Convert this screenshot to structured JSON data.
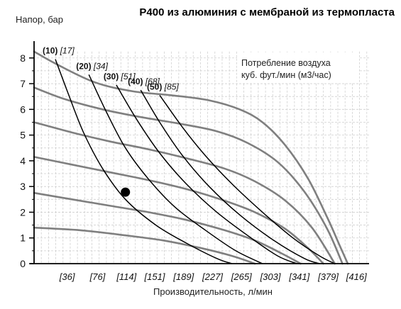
{
  "chart_data": {
    "type": "line",
    "title": "P400 из алюминия с мембраной из термопласта",
    "ylabel": "Напор, бар",
    "xlabel": "Производительность, л/мин",
    "ylim": [
      0,
      8.6
    ],
    "xlim": [
      0,
      440
    ],
    "y_ticks": [
      "0",
      "1",
      "2",
      "3",
      "4",
      "5",
      "6",
      "7",
      "8"
    ],
    "x_ticks": [
      {
        "value": 36,
        "label": "[36]"
      },
      {
        "value": 76,
        "label": "[76]"
      },
      {
        "value": 114,
        "label": "[114]"
      },
      {
        "value": 151,
        "label": "[151]"
      },
      {
        "value": 189,
        "label": "[189]"
      },
      {
        "value": 227,
        "label": "[227]"
      },
      {
        "value": 265,
        "label": "[265]"
      },
      {
        "value": 303,
        "label": "[303]"
      },
      {
        "value": 341,
        "label": "[341]"
      },
      {
        "value": 379,
        "label": "[379]"
      },
      {
        "value": 416,
        "label": "[416]"
      }
    ],
    "grid": true,
    "legend": {
      "position": "top-right",
      "lines": [
        "Потребление воздуха",
        "куб. фут./мин (м3/час)"
      ]
    },
    "pressure_series": [
      {
        "values": [
          [
            0,
            8.25
          ],
          [
            30,
            7.75
          ],
          [
            80,
            7.05
          ],
          [
            130,
            6.7
          ],
          [
            180,
            6.55
          ],
          [
            230,
            6.35
          ],
          [
            270,
            6.0
          ],
          [
            300,
            5.5
          ],
          [
            330,
            4.6
          ],
          [
            360,
            3.3
          ],
          [
            385,
            1.8
          ],
          [
            400,
            0.8
          ],
          [
            412,
            0.0
          ]
        ]
      },
      {
        "values": [
          [
            0,
            6.85
          ],
          [
            40,
            6.4
          ],
          [
            90,
            6.0
          ],
          [
            140,
            5.7
          ],
          [
            190,
            5.45
          ],
          [
            240,
            5.15
          ],
          [
            280,
            4.7
          ],
          [
            320,
            3.95
          ],
          [
            355,
            2.8
          ],
          [
            385,
            1.35
          ],
          [
            405,
            0.0
          ]
        ]
      },
      {
        "values": [
          [
            0,
            5.5
          ],
          [
            50,
            5.1
          ],
          [
            100,
            4.75
          ],
          [
            150,
            4.45
          ],
          [
            200,
            4.1
          ],
          [
            250,
            3.7
          ],
          [
            290,
            3.2
          ],
          [
            330,
            2.45
          ],
          [
            365,
            1.4
          ],
          [
            395,
            0.0
          ]
        ]
      },
      {
        "values": [
          [
            0,
            4.15
          ],
          [
            50,
            3.85
          ],
          [
            100,
            3.55
          ],
          [
            150,
            3.25
          ],
          [
            200,
            2.9
          ],
          [
            250,
            2.45
          ],
          [
            290,
            2.0
          ],
          [
            330,
            1.35
          ],
          [
            360,
            0.6
          ],
          [
            380,
            0.0
          ]
        ]
      },
      {
        "values": [
          [
            0,
            2.75
          ],
          [
            50,
            2.5
          ],
          [
            100,
            2.25
          ],
          [
            150,
            2.0
          ],
          [
            200,
            1.7
          ],
          [
            250,
            1.3
          ],
          [
            290,
            0.9
          ],
          [
            325,
            0.4
          ],
          [
            350,
            0.0
          ]
        ]
      },
      {
        "values": [
          [
            0,
            1.4
          ],
          [
            60,
            1.3
          ],
          [
            120,
            1.1
          ],
          [
            170,
            0.9
          ],
          [
            220,
            0.6
          ],
          [
            260,
            0.3
          ],
          [
            290,
            0.0
          ]
        ]
      }
    ],
    "air_series": [
      {
        "label_cfm": "(10)",
        "label_m3h": "[17]",
        "values": [
          [
            28,
            7.95
          ],
          [
            45,
            6.6
          ],
          [
            65,
            5.1
          ],
          [
            90,
            3.7
          ],
          [
            120,
            2.5
          ],
          [
            160,
            1.5
          ],
          [
            200,
            0.8
          ],
          [
            240,
            0.2
          ],
          [
            260,
            0.0
          ]
        ]
      },
      {
        "label_cfm": "(20)",
        "label_m3h": "[34]",
        "values": [
          [
            72,
            7.35
          ],
          [
            95,
            5.9
          ],
          [
            120,
            4.5
          ],
          [
            150,
            3.3
          ],
          [
            185,
            2.2
          ],
          [
            225,
            1.3
          ],
          [
            265,
            0.5
          ],
          [
            300,
            0.0
          ]
        ]
      },
      {
        "label_cfm": "(30)",
        "label_m3h": "[51]",
        "values": [
          [
            108,
            6.95
          ],
          [
            135,
            5.6
          ],
          [
            165,
            4.3
          ],
          [
            200,
            3.1
          ],
          [
            240,
            2.0
          ],
          [
            285,
            1.0
          ],
          [
            320,
            0.3
          ],
          [
            345,
            0.0
          ]
        ]
      },
      {
        "label_cfm": "(40)",
        "label_m3h": "[68]",
        "values": [
          [
            140,
            6.75
          ],
          [
            165,
            5.5
          ],
          [
            195,
            4.2
          ],
          [
            230,
            3.0
          ],
          [
            270,
            1.9
          ],
          [
            315,
            0.9
          ],
          [
            355,
            0.2
          ],
          [
            375,
            0.0
          ]
        ]
      },
      {
        "label_cfm": "(50)",
        "label_m3h": "[85]",
        "values": [
          [
            165,
            6.55
          ],
          [
            195,
            5.3
          ],
          [
            225,
            4.2
          ],
          [
            260,
            3.1
          ],
          [
            300,
            2.0
          ],
          [
            340,
            1.0
          ],
          [
            375,
            0.3
          ],
          [
            395,
            0.0
          ]
        ]
      }
    ],
    "marker": {
      "x": 120,
      "y": 2.78
    }
  }
}
